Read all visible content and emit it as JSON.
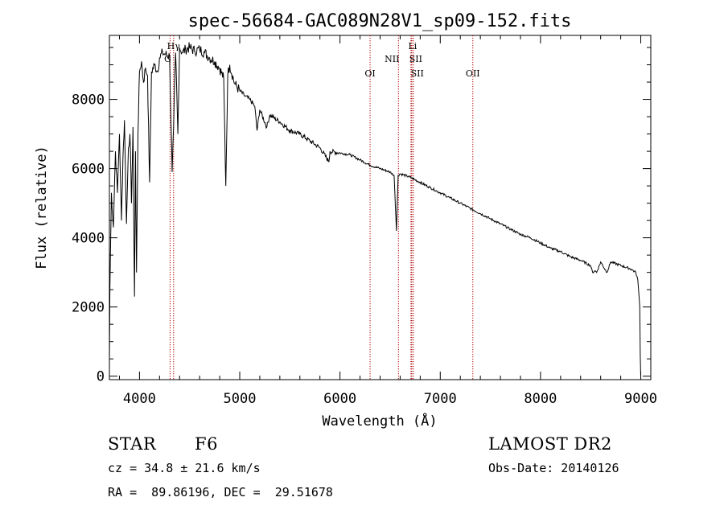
{
  "chart_data": {
    "type": "line",
    "title": "spec-56684-GAC089N28V1_sp09-152.fits",
    "xlabel": "Wavelength (Å)",
    "ylabel": "Flux (relative)",
    "xlim": [
      3700,
      9100
    ],
    "ylim": [
      -100,
      9850
    ],
    "x_ticks": [
      4000,
      5000,
      6000,
      7000,
      8000,
      9000
    ],
    "x_tick_labels": [
      "4000",
      "5000",
      "6000",
      "7000",
      "8000",
      "9000"
    ],
    "y_ticks": [
      0,
      2000,
      4000,
      6000,
      8000
    ],
    "y_tick_labels": [
      "0",
      "2000",
      "4000",
      "6000",
      "8000"
    ],
    "grid": false,
    "series": [
      {
        "x": [
          3700,
          3705,
          3720,
          3740,
          3760,
          3780,
          3800,
          3820,
          3835,
          3850,
          3870,
          3889,
          3905,
          3920,
          3935,
          3950,
          3960,
          3970,
          3985,
          4000,
          4020,
          4040,
          4060,
          4080,
          4101,
          4120,
          4150,
          4180,
          4200,
          4230,
          4260,
          4300,
          4326,
          4340,
          4360,
          4383,
          4400,
          4430,
          4460,
          4500,
          4550,
          4600,
          4650,
          4700,
          4750,
          4800,
          4840,
          4861,
          4880,
          4900,
          4950,
          5000,
          5050,
          5100,
          5150,
          5172,
          5200,
          5270,
          5300,
          5400,
          5500,
          5600,
          5700,
          5800,
          5890,
          5900,
          6000,
          6100,
          6200,
          6300,
          6400,
          6500,
          6540,
          6563,
          6580,
          6600,
          6700,
          6800,
          6900,
          7000,
          7100,
          7200,
          7300,
          7400,
          7500,
          7600,
          7700,
          7800,
          7900,
          8000,
          8100,
          8200,
          8300,
          8400,
          8498,
          8520,
          8542,
          8560,
          8600,
          8662,
          8700,
          8800,
          8900,
          8950,
          8970,
          8990,
          8995,
          9000
        ],
        "y": [
          400,
          2500,
          5300,
          4300,
          6500,
          5300,
          7000,
          4500,
          6300,
          7400,
          4400,
          6600,
          7000,
          5000,
          7200,
          2300,
          6500,
          3000,
          7000,
          8800,
          9100,
          8500,
          8900,
          8700,
          5600,
          8800,
          9000,
          8800,
          9200,
          9350,
          9300,
          9250,
          5900,
          7200,
          9350,
          7000,
          9500,
          9350,
          9450,
          9500,
          9400,
          9450,
          9350,
          9200,
          9100,
          8900,
          8600,
          5500,
          8700,
          9000,
          8450,
          8250,
          8100,
          8000,
          7800,
          7100,
          7700,
          7200,
          7550,
          7350,
          7100,
          7000,
          6800,
          6600,
          6200,
          6500,
          6450,
          6400,
          6250,
          6100,
          6000,
          5900,
          5800,
          4200,
          5800,
          5850,
          5750,
          5600,
          5450,
          5300,
          5150,
          5000,
          4850,
          4700,
          4550,
          4400,
          4250,
          4100,
          4000,
          3850,
          3700,
          3600,
          3450,
          3350,
          3200,
          3000,
          3050,
          3000,
          3300,
          3000,
          3300,
          3200,
          3100,
          3000,
          2800,
          2000,
          600,
          0
        ]
      }
    ],
    "lines": [
      {
        "name": "Hγ",
        "x": 4340
      },
      {
        "name": "G",
        "x": 4305
      },
      {
        "name": "OI",
        "x": 6300
      },
      {
        "name": "NII",
        "x": 6583
      },
      {
        "name": "Li",
        "x": 6708
      },
      {
        "name": "SII",
        "x": 6716
      },
      {
        "name": "SII",
        "x": 6731
      },
      {
        "name": "OII",
        "x": 7325
      }
    ]
  },
  "info": {
    "object_type": "STAR",
    "subclass": "F6",
    "survey": "LAMOST DR2",
    "cz": "cz = 34.8 ± 21.6 km/s",
    "obs_date": "Obs-Date: 20140126",
    "coords": "RA =  89.86196, DEC =  29.51678"
  }
}
